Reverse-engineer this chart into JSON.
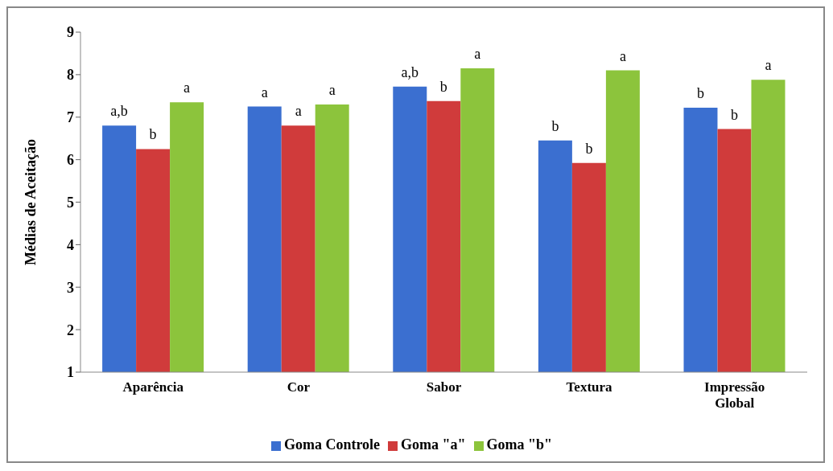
{
  "chart_data": {
    "type": "bar",
    "ylabel": "Médias de Aceitação",
    "categories": [
      "Aparência",
      "Cor",
      "Sabor",
      "Textura",
      "Impressão Global"
    ],
    "series": [
      {
        "name": "Goma Controle",
        "color": "#3b6fd0",
        "values": [
          6.8,
          7.25,
          7.72,
          6.45,
          7.22
        ],
        "value_labels": [
          "a,b",
          "a",
          "a,b",
          "b",
          "b"
        ]
      },
      {
        "name": "Goma \"a\"",
        "color": "#d03b3b",
        "values": [
          6.25,
          6.8,
          7.38,
          5.92,
          6.72
        ],
        "value_labels": [
          "b",
          "a",
          "b",
          "b",
          "b"
        ]
      },
      {
        "name": "Goma \"b\"",
        "color": "#8cc43c",
        "values": [
          7.35,
          7.3,
          8.15,
          8.1,
          7.88
        ],
        "value_labels": [
          "a",
          "a",
          "a",
          "a",
          "a"
        ]
      }
    ],
    "ylim": [
      1,
      9
    ],
    "yticks": [
      1,
      2,
      3,
      4,
      5,
      6,
      7,
      8,
      9
    ],
    "grid": false,
    "legend": "bottom"
  }
}
